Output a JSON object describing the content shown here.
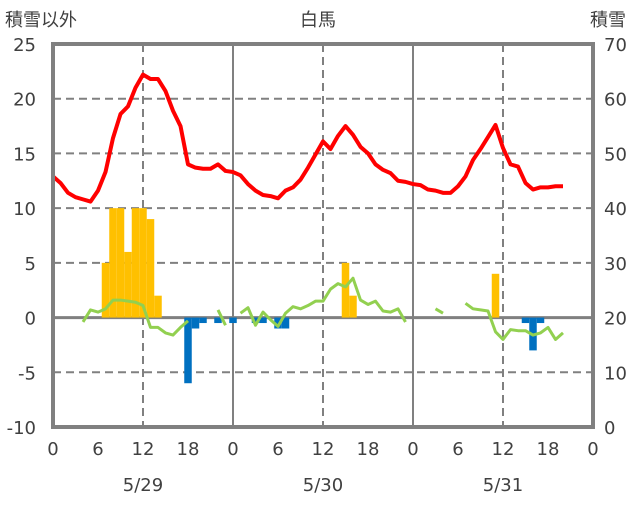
{
  "chart_data": {
    "type": "bar+line",
    "title": "白馬",
    "ylabel_left": "積雪以外",
    "ylabel_right": "積雪",
    "ylim_left": [
      -10,
      25
    ],
    "ylim_right": [
      0,
      70
    ],
    "yticks_left": [
      "25",
      "20",
      "15",
      "10",
      "5",
      "0",
      "-5",
      "-10"
    ],
    "yticks_right": [
      "70",
      "60",
      "50",
      "40",
      "30",
      "20",
      "10",
      "0"
    ],
    "xlim_hours": [
      0,
      72
    ],
    "xtick_labels": [
      "0",
      "6",
      "12",
      "18",
      "0",
      "6",
      "12",
      "18",
      "0",
      "6",
      "12",
      "18",
      "0"
    ],
    "dates": [
      "5/29",
      "5/30",
      "5/31"
    ],
    "grid": true,
    "colors": {
      "red_line": "#ff0000",
      "green_line": "#92d050",
      "positive_bars": "#ffc000",
      "negative_bars": "#0070c0",
      "axis": "#808080"
    },
    "red_series": [
      12.9,
      12.3,
      11.4,
      11.0,
      10.8,
      10.6,
      11.6,
      13.3,
      16.4,
      18.6,
      19.3,
      21.0,
      22.2,
      21.8,
      21.8,
      20.7,
      18.9,
      17.5,
      14.0,
      13.7,
      13.6,
      13.6,
      14.0,
      13.4,
      13.3,
      13.0,
      12.2,
      11.6,
      11.2,
      11.1,
      10.9,
      11.6,
      11.9,
      12.6,
      13.7,
      14.9,
      16.1,
      15.4,
      16.6,
      17.5,
      16.7,
      15.6,
      15.0,
      14.0,
      13.5,
      13.2,
      12.5,
      12.4,
      12.2,
      12.1,
      11.7,
      11.6,
      11.4,
      11.4,
      12.0,
      12.9,
      14.4,
      15.4,
      16.5,
      17.6,
      15.5,
      14.0,
      13.8,
      12.3,
      11.7,
      11.9,
      11.9,
      12.0,
      12.0
    ],
    "green_series": [
      null,
      null,
      null,
      null,
      -0.4,
      0.7,
      0.5,
      0.8,
      1.6,
      1.6,
      1.5,
      1.4,
      1.1,
      -0.9,
      -0.9,
      -1.4,
      -1.6,
      -0.9,
      -0.3,
      null,
      null,
      null,
      0.7,
      -0.7,
      null,
      0.4,
      0.9,
      -0.7,
      0.5,
      -0.2,
      -0.8,
      0.4,
      1.0,
      0.8,
      1.1,
      1.5,
      1.5,
      2.6,
      3.1,
      2.8,
      3.6,
      1.6,
      1.2,
      1.5,
      0.6,
      0.5,
      0.8,
      -0.4,
      null,
      null,
      null,
      0.8,
      0.4,
      null,
      null,
      1.3,
      0.8,
      0.7,
      0.6,
      -1.3,
      -2.0,
      -1.1,
      -1.2,
      -1.2,
      -1.6,
      -1.4,
      -0.9,
      -2.0,
      -1.4
    ],
    "bars": [
      {
        "hour": 7,
        "value": 5
      },
      {
        "hour": 8,
        "value": 10
      },
      {
        "hour": 9,
        "value": 10
      },
      {
        "hour": 10,
        "value": 6
      },
      {
        "hour": 11,
        "value": 10
      },
      {
        "hour": 12,
        "value": 10
      },
      {
        "hour": 13,
        "value": 9
      },
      {
        "hour": 14,
        "value": 2
      },
      {
        "hour": 18,
        "value": -6
      },
      {
        "hour": 19,
        "value": -1
      },
      {
        "hour": 20,
        "value": -0.5
      },
      {
        "hour": 22,
        "value": -0.5
      },
      {
        "hour": 24,
        "value": -0.5
      },
      {
        "hour": 27,
        "value": -0.5
      },
      {
        "hour": 28,
        "value": -0.5
      },
      {
        "hour": 30,
        "value": -1
      },
      {
        "hour": 31,
        "value": -1
      },
      {
        "hour": 39,
        "value": 5
      },
      {
        "hour": 40,
        "value": 2
      },
      {
        "hour": 59,
        "value": 4
      },
      {
        "hour": 63,
        "value": -0.5
      },
      {
        "hour": 64,
        "value": -3
      },
      {
        "hour": 65,
        "value": -0.5
      }
    ]
  }
}
